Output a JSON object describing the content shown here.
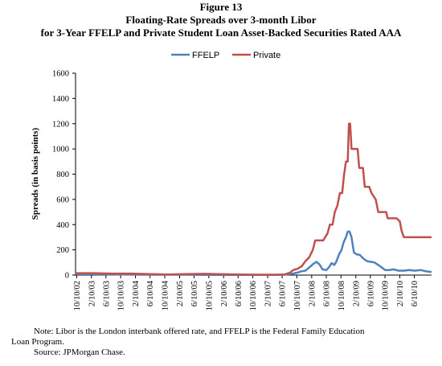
{
  "figure": {
    "number": "Figure 13",
    "title_line1": "Floating-Rate Spreads over 3-month Libor",
    "title_line2": "for 3-Year FFELP and Private Student Loan Asset-Backed Securities Rated AAA"
  },
  "notes": {
    "line1": "Note:  Libor is the London interbank offered rate, and FFELP is the Federal Family Education",
    "line2": "Loan Program.",
    "source": "Source:  JPMorgan Chase."
  },
  "chart_data": {
    "type": "line",
    "title": "",
    "xlabel": "",
    "ylabel": "Spreads (in basis  points)",
    "ylim": [
      0,
      1600
    ],
    "yticks": [
      0,
      200,
      400,
      600,
      800,
      1000,
      1200,
      1400,
      1600
    ],
    "x_range": [
      "2002-10-01",
      "2010-10-31"
    ],
    "x_tick_labels": [
      "10/10/02",
      "2/10/03",
      "6/10/03",
      "10/10/03",
      "2/10/04",
      "6/10/04",
      "10/10/04",
      "2/10/05",
      "6/10/05",
      "10/10/05",
      "2/10/06",
      "6/10/06",
      "10/10/06",
      "2/10/07",
      "6/10/07",
      "10/10/07",
      "2/10/08",
      "6/10/08",
      "10/10/08",
      "2/10/09",
      "6/10/09",
      "10/10/09",
      "2/10/10",
      "6/10/10"
    ],
    "x_tick_dates": [
      "2002-10-10",
      "2003-02-10",
      "2003-06-10",
      "2003-10-10",
      "2004-02-10",
      "2004-06-10",
      "2004-10-10",
      "2005-02-10",
      "2005-06-10",
      "2005-10-10",
      "2006-02-10",
      "2006-06-10",
      "2006-10-10",
      "2007-02-10",
      "2007-06-10",
      "2007-10-10",
      "2008-02-10",
      "2008-06-10",
      "2008-10-10",
      "2009-02-10",
      "2009-06-10",
      "2009-10-10",
      "2010-02-10",
      "2010-06-10"
    ],
    "grid": false,
    "legend_position": "top-center",
    "series": [
      {
        "name": "FFELP",
        "color": "#4f81bd",
        "points": [
          [
            "2002-10-01",
            8
          ],
          [
            "2003-03-01",
            7
          ],
          [
            "2003-08-01",
            6
          ],
          [
            "2004-01-01",
            4
          ],
          [
            "2004-06-01",
            3
          ],
          [
            "2004-11-01",
            3
          ],
          [
            "2005-04-01",
            3
          ],
          [
            "2005-09-01",
            2
          ],
          [
            "2006-02-01",
            2
          ],
          [
            "2006-07-01",
            2
          ],
          [
            "2006-12-01",
            2
          ],
          [
            "2007-04-01",
            2
          ],
          [
            "2007-07-01",
            3
          ],
          [
            "2007-09-01",
            10
          ],
          [
            "2007-10-15",
            20
          ],
          [
            "2007-11-15",
            30
          ],
          [
            "2007-12-20",
            35
          ],
          [
            "2008-01-20",
            60
          ],
          [
            "2008-02-25",
            90
          ],
          [
            "2008-03-20",
            105
          ],
          [
            "2008-04-15",
            85
          ],
          [
            "2008-05-10",
            45
          ],
          [
            "2008-06-10",
            40
          ],
          [
            "2008-07-01",
            60
          ],
          [
            "2008-07-25",
            95
          ],
          [
            "2008-08-15",
            80
          ],
          [
            "2008-09-01",
            105
          ],
          [
            "2008-09-25",
            165
          ],
          [
            "2008-10-15",
            200
          ],
          [
            "2008-11-01",
            260
          ],
          [
            "2008-11-20",
            300
          ],
          [
            "2008-12-05",
            345
          ],
          [
            "2008-12-20",
            345
          ],
          [
            "2009-01-05",
            300
          ],
          [
            "2009-01-15",
            240
          ],
          [
            "2009-01-25",
            180
          ],
          [
            "2009-02-15",
            165
          ],
          [
            "2009-03-15",
            160
          ],
          [
            "2009-04-15",
            130
          ],
          [
            "2009-05-15",
            110
          ],
          [
            "2009-06-15",
            105
          ],
          [
            "2009-07-15",
            100
          ],
          [
            "2009-08-15",
            80
          ],
          [
            "2009-09-15",
            60
          ],
          [
            "2009-10-10",
            40
          ],
          [
            "2009-11-10",
            40
          ],
          [
            "2009-12-20",
            45
          ],
          [
            "2010-02-01",
            35
          ],
          [
            "2010-03-15",
            35
          ],
          [
            "2010-05-01",
            40
          ],
          [
            "2010-06-15",
            35
          ],
          [
            "2010-08-01",
            40
          ],
          [
            "2010-09-15",
            30
          ],
          [
            "2010-10-31",
            25
          ]
        ]
      },
      {
        "name": "Private",
        "color": "#c0504d",
        "points": [
          [
            "2002-10-01",
            15
          ],
          [
            "2003-03-01",
            15
          ],
          [
            "2003-08-01",
            12
          ],
          [
            "2004-01-01",
            12
          ],
          [
            "2004-06-01",
            8
          ],
          [
            "2004-11-01",
            5
          ],
          [
            "2005-04-01",
            8
          ],
          [
            "2005-09-01",
            10
          ],
          [
            "2006-01-01",
            8
          ],
          [
            "2006-06-01",
            5
          ],
          [
            "2006-12-01",
            3
          ],
          [
            "2007-05-01",
            3
          ],
          [
            "2007-07-01",
            5
          ],
          [
            "2007-08-15",
            20
          ],
          [
            "2007-09-10",
            40
          ],
          [
            "2007-10-15",
            50
          ],
          [
            "2007-11-20",
            70
          ],
          [
            "2007-12-20",
            110
          ],
          [
            "2008-01-20",
            140
          ],
          [
            "2008-02-20",
            200
          ],
          [
            "2008-03-10",
            275
          ],
          [
            "2008-04-01",
            275
          ],
          [
            "2008-05-15",
            275
          ],
          [
            "2008-06-01",
            300
          ],
          [
            "2008-06-20",
            330
          ],
          [
            "2008-07-10",
            400
          ],
          [
            "2008-08-01",
            400
          ],
          [
            "2008-08-20",
            500
          ],
          [
            "2008-09-10",
            550
          ],
          [
            "2008-10-01",
            650
          ],
          [
            "2008-10-20",
            650
          ],
          [
            "2008-11-05",
            800
          ],
          [
            "2008-11-20",
            900
          ],
          [
            "2008-12-05",
            900
          ],
          [
            "2008-12-15",
            1200
          ],
          [
            "2008-12-25",
            1200
          ],
          [
            "2009-01-05",
            1000
          ],
          [
            "2009-02-01",
            1000
          ],
          [
            "2009-02-25",
            1000
          ],
          [
            "2009-03-10",
            850
          ],
          [
            "2009-04-10",
            850
          ],
          [
            "2009-04-25",
            700
          ],
          [
            "2009-06-01",
            700
          ],
          [
            "2009-06-20",
            650
          ],
          [
            "2009-07-25",
            600
          ],
          [
            "2009-08-15",
            500
          ],
          [
            "2009-10-20",
            500
          ],
          [
            "2009-11-01",
            450
          ],
          [
            "2009-12-20",
            450
          ],
          [
            "2010-01-15",
            450
          ],
          [
            "2010-02-10",
            425
          ],
          [
            "2010-02-25",
            350
          ],
          [
            "2010-03-15",
            300
          ],
          [
            "2010-06-01",
            300
          ],
          [
            "2010-10-31",
            300
          ]
        ]
      }
    ]
  }
}
